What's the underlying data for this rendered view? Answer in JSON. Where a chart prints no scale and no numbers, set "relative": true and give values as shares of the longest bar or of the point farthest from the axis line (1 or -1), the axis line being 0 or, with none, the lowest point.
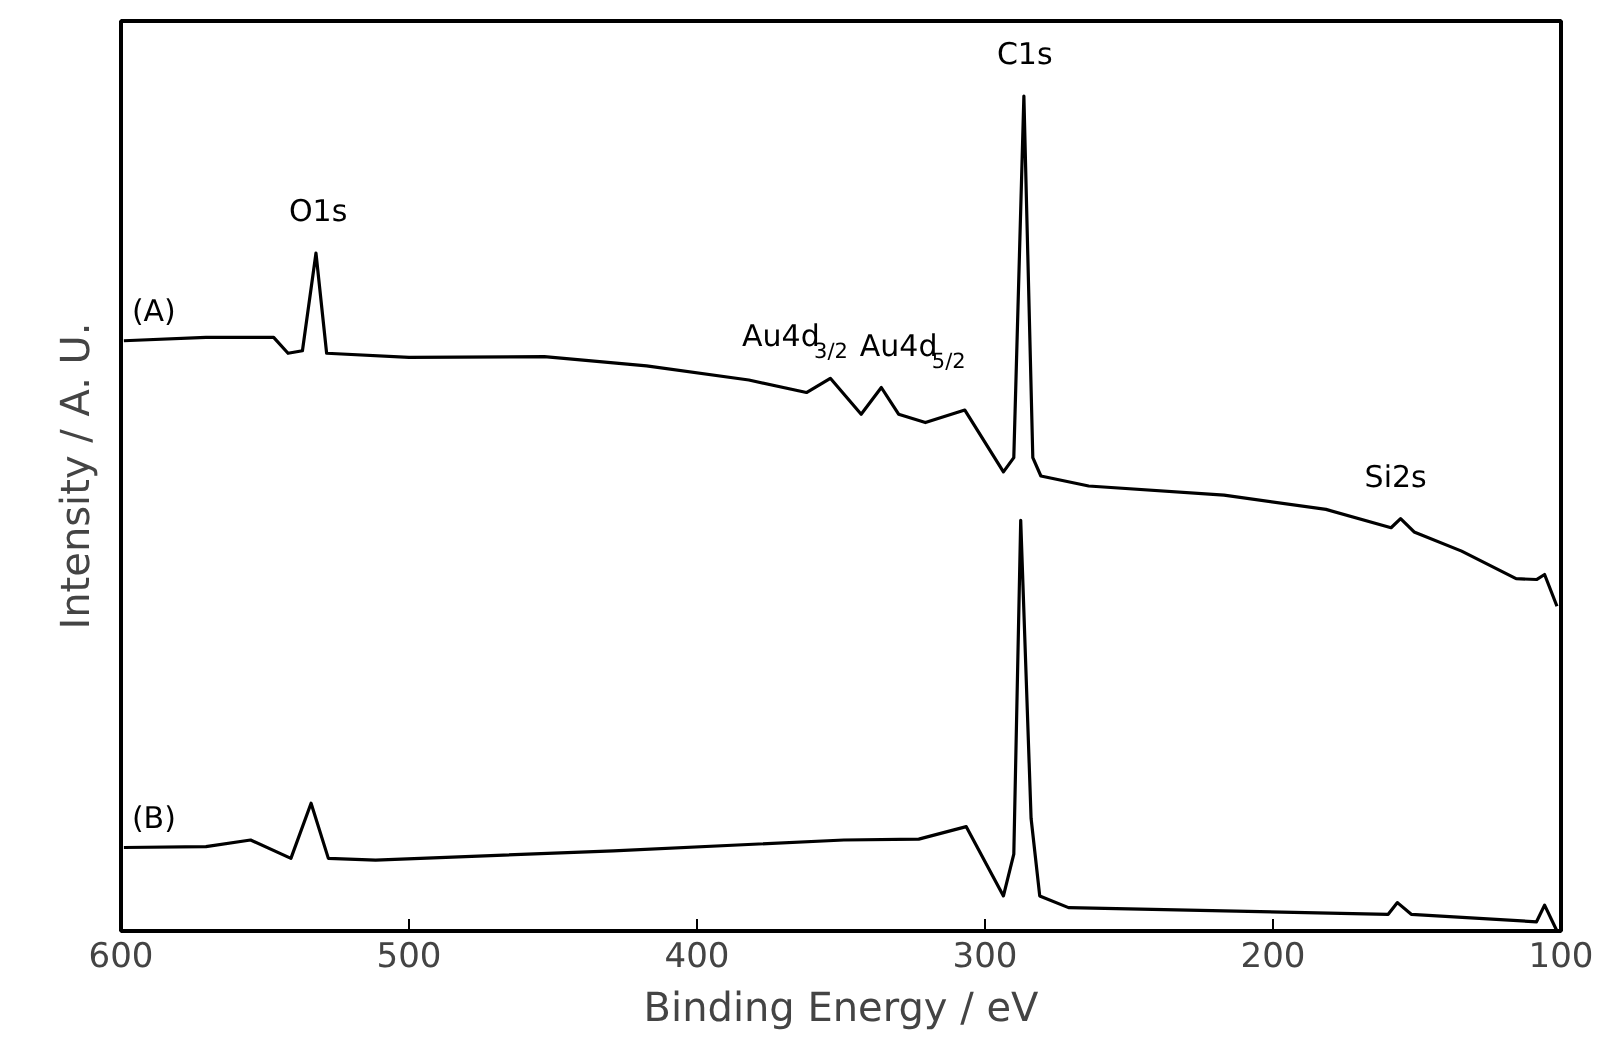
{
  "chart_data": {
    "type": "line",
    "relative": true,
    "xlabel": "Binding Energy / eV",
    "ylabel": "Intensity / A. U.",
    "xlim": [
      600,
      100
    ],
    "xticks": [
      600,
      500,
      400,
      300,
      200,
      100
    ],
    "grid": false,
    "legend": false,
    "line_style": "solid",
    "series": [
      {
        "name": "(A)",
        "color": "#000000",
        "x": [
          599,
          570.5,
          547,
          542,
          537,
          532.3,
          528.6,
          500,
          453,
          417.5,
          382,
          362,
          353.7,
          343,
          336,
          330,
          320.7,
          307,
          293.6,
          290,
          286.5,
          283.4,
          280.6,
          264,
          217,
          181.6,
          159,
          155.7,
          151,
          134.5,
          115.6,
          108.5,
          105.7,
          101.4
        ],
        "values": [
          0.707,
          0.711,
          0.711,
          0.692,
          0.695,
          0.812,
          0.692,
          0.687,
          0.688,
          0.677,
          0.66,
          0.645,
          0.662,
          0.619,
          0.651,
          0.619,
          0.609,
          0.624,
          0.55,
          0.567,
          1.0,
          0.567,
          0.545,
          0.533,
          0.522,
          0.505,
          0.483,
          0.494,
          0.478,
          0.455,
          0.422,
          0.421,
          0.427,
          0.389
        ]
      },
      {
        "name": "(B)",
        "color": "#000000",
        "x": [
          599,
          570.5,
          555,
          541,
          534,
          528,
          511.6,
          429,
          349,
          323,
          306.5,
          293.6,
          290,
          287.6,
          284,
          281,
          271,
          160,
          156.8,
          152,
          108.5,
          105.7,
          101.4
        ],
        "values": [
          0.1,
          0.101,
          0.109,
          0.087,
          0.153,
          0.087,
          0.085,
          0.096,
          0.109,
          0.11,
          0.125,
          0.042,
          0.092,
          0.492,
          0.135,
          0.042,
          0.028,
          0.02,
          0.034,
          0.02,
          0.011,
          0.031,
          0.0
        ]
      }
    ],
    "annotations": [
      {
        "text": "O1s",
        "x": 532.3,
        "y": 0.812
      },
      {
        "text": "Au4d$_{3/2}$",
        "x": 353.7,
        "y": 0.662
      },
      {
        "text": "Au4d$_{5/2}$",
        "x": 336,
        "y": 0.651
      },
      {
        "text": "C1s",
        "x": 286.5,
        "y": 1.0
      },
      {
        "text": "Si2s",
        "x": 155.7,
        "y": 0.494
      }
    ]
  }
}
